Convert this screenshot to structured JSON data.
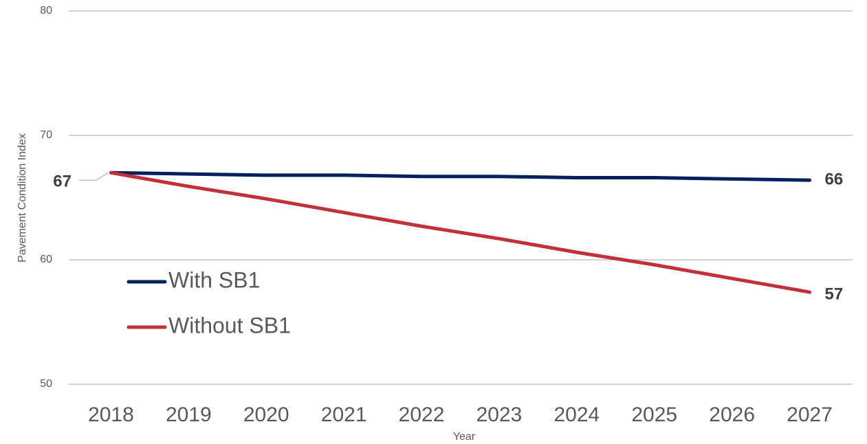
{
  "chart_data": {
    "type": "line",
    "x_label": "Year",
    "y_label": "Pavement Condition Index",
    "categories": [
      "2018",
      "2019",
      "2020",
      "2021",
      "2022",
      "2023",
      "2024",
      "2025",
      "2026",
      "2027"
    ],
    "series": [
      {
        "name": "With SB1",
        "color": "#002060",
        "values": [
          67,
          66.9,
          66.8,
          66.8,
          66.7,
          66.7,
          66.6,
          66.6,
          66.5,
          66.4
        ],
        "value_labels": [
          "67",
          null,
          null,
          null,
          null,
          null,
          null,
          null,
          null,
          "66"
        ]
      },
      {
        "name": "Without SB1",
        "color": "#c0313a",
        "values": [
          67,
          65.9,
          64.9,
          63.8,
          62.7,
          61.7,
          60.6,
          59.6,
          58.5,
          57.4
        ],
        "value_labels": [
          null,
          null,
          null,
          null,
          null,
          null,
          null,
          null,
          null,
          "57"
        ]
      }
    ],
    "ylim": [
      50,
      80
    ],
    "yticks": [
      50,
      60,
      70,
      80
    ],
    "grid": true
  }
}
